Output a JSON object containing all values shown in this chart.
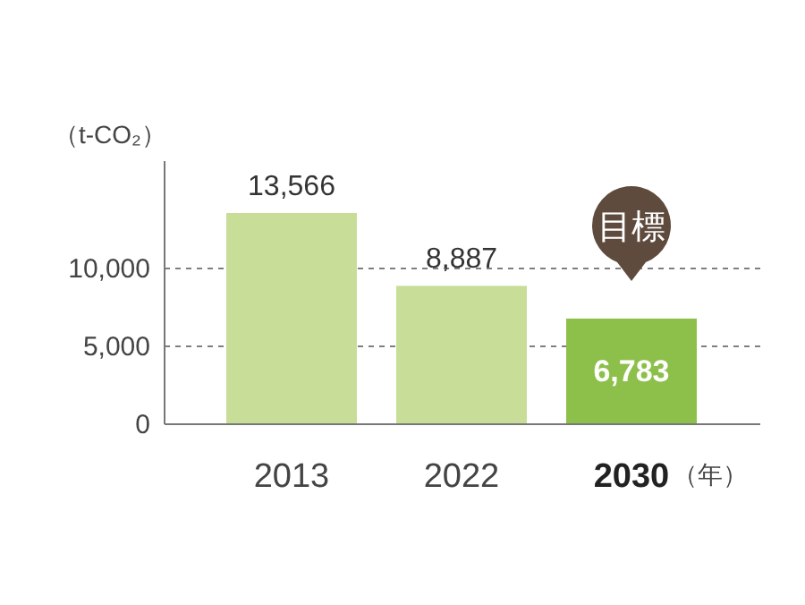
{
  "chart_data": {
    "type": "bar",
    "categories": [
      "2013",
      "2022",
      "2030"
    ],
    "values": [
      13566,
      8887,
      6783
    ],
    "value_labels": [
      "13,566",
      "8,887",
      "6,783"
    ],
    "colors": [
      "#c8de98",
      "#c8de98",
      "#8dc04a"
    ],
    "ylabel": "（t-CO₂）",
    "xlabel": "（年）",
    "ylim": [
      0,
      16900
    ],
    "yticks": [
      0,
      {
        "value": 5000,
        "label": "5,000"
      },
      {
        "value": 10000,
        "label": "10,000"
      }
    ],
    "grid": "y",
    "annotations": [
      {
        "text": "目標",
        "x": "2030",
        "y": 6783
      }
    ]
  }
}
